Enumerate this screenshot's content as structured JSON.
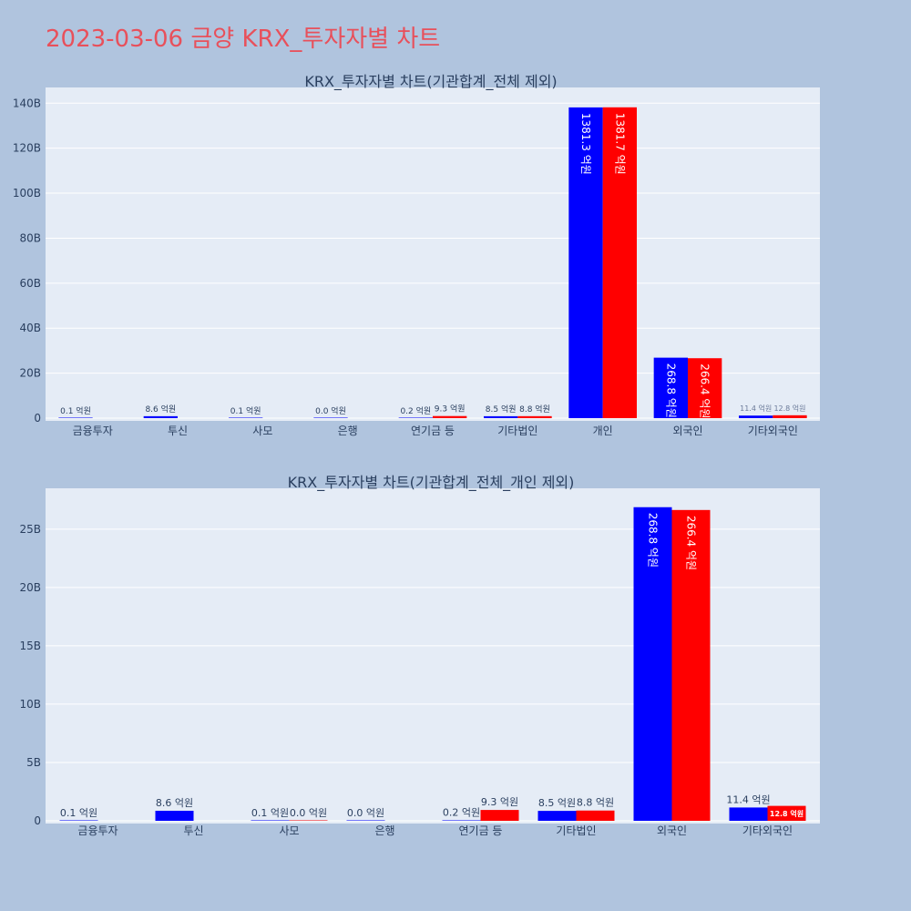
{
  "title": "2023-03-06 금양 KRX_투자자별 차트",
  "colors": {
    "buy": "#0000ff",
    "sell": "#ff0000",
    "plot_bg": "#e5ecf6",
    "page_bg": "#b0c4de",
    "text": "#2a3f5f"
  },
  "chart_data": [
    {
      "type": "bar",
      "title": "KRX_투자자별 차트(기관합계_전체 제외)",
      "categories": [
        "금융투자",
        "투신",
        "사모",
        "은행",
        "연기금 등",
        "기타법인",
        "개인",
        "외국인",
        "기타외국인"
      ],
      "series": [
        {
          "values": [
            0.01,
            0.86,
            0.01,
            0.0,
            0.02,
            0.85,
            138.13,
            26.88,
            1.14
          ],
          "labels": [
            "0.1 억원",
            "8.6 억원",
            "0.1 억원",
            "0.0 억원",
            "0.2 억원",
            "8.5 억원",
            "1381.3 억원",
            "268.8 억원",
            "11.4 억원"
          ]
        },
        {
          "values": [
            null,
            null,
            null,
            null,
            0.93,
            0.88,
            138.17,
            26.64,
            1.28
          ],
          "labels": [
            null,
            null,
            null,
            null,
            "9.3 억원",
            "8.8 억원",
            "1381.7 억원",
            "266.4 억원",
            "12.8 억원"
          ]
        }
      ],
      "ylim": [
        0,
        147
      ],
      "yticks": [
        0,
        20,
        40,
        60,
        80,
        100,
        120,
        140
      ],
      "ytick_labels": [
        "0",
        "20B",
        "40B",
        "60B",
        "80B",
        "100B",
        "120B",
        "140B"
      ],
      "grid": true
    },
    {
      "type": "bar",
      "title": "KRX_투자자별 차트(기관합계_전체_개인 제외)",
      "categories": [
        "금융투자",
        "투신",
        "사모",
        "은행",
        "연기금 등",
        "기타법인",
        "외국인",
        "기타외국인"
      ],
      "series": [
        {
          "values": [
            0.01,
            0.86,
            0.01,
            0.0,
            0.02,
            0.85,
            26.88,
            1.14
          ],
          "labels": [
            "0.1 억원",
            "8.6 억원",
            "0.1 억원",
            "0.0 억원",
            "0.2 억원",
            "8.5 억원",
            "268.8 억원",
            "11.4 억원"
          ]
        },
        {
          "values": [
            null,
            null,
            0.0,
            null,
            0.93,
            0.88,
            26.64,
            1.28
          ],
          "labels": [
            null,
            null,
            "0.0 억원",
            null,
            "9.3 억원",
            "8.8 억원",
            "266.4 억원",
            "12.8 억원"
          ]
        }
      ],
      "ylim": [
        0,
        28.5
      ],
      "yticks": [
        0,
        5,
        10,
        15,
        20,
        25
      ],
      "ytick_labels": [
        "0",
        "5B",
        "10B",
        "15B",
        "20B",
        "25B"
      ],
      "grid": true
    }
  ]
}
